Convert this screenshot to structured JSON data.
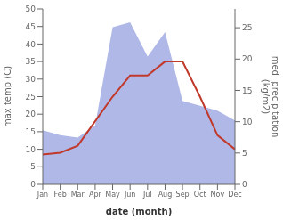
{
  "chart_data": {
    "type": "line",
    "categories": [
      "Jan",
      "Feb",
      "Mar",
      "Apr",
      "May",
      "Jun",
      "Jul",
      "Aug",
      "Sep",
      "Oct",
      "Nov",
      "Dec"
    ],
    "series": [
      {
        "type": "area",
        "color": "#b0b8e8",
        "values": [
          15.4,
          14.0,
          13.3,
          16.8,
          44.8,
          46.2,
          36.4,
          43.4,
          23.8,
          22.4,
          21.0,
          18.2
        ]
      },
      {
        "type": "line",
        "color": "#c0392b",
        "values": [
          8.5,
          9.0,
          11.0,
          18.0,
          25.0,
          31.0,
          31.0,
          35.0,
          35.0,
          25.0,
          14.0,
          10.0
        ]
      }
    ],
    "xlabel": "date (month)",
    "ylabel": "max temp (C)",
    "y2label": "med. precipitation\n(kg/m2)",
    "ylim": [
      0,
      50
    ],
    "yticks": [
      0,
      5,
      10,
      15,
      20,
      25,
      30,
      35,
      40,
      45,
      50
    ],
    "y2lim": [
      0,
      28
    ],
    "y2ticks": [
      0,
      5,
      10,
      15,
      20,
      25
    ],
    "grid": false
  }
}
